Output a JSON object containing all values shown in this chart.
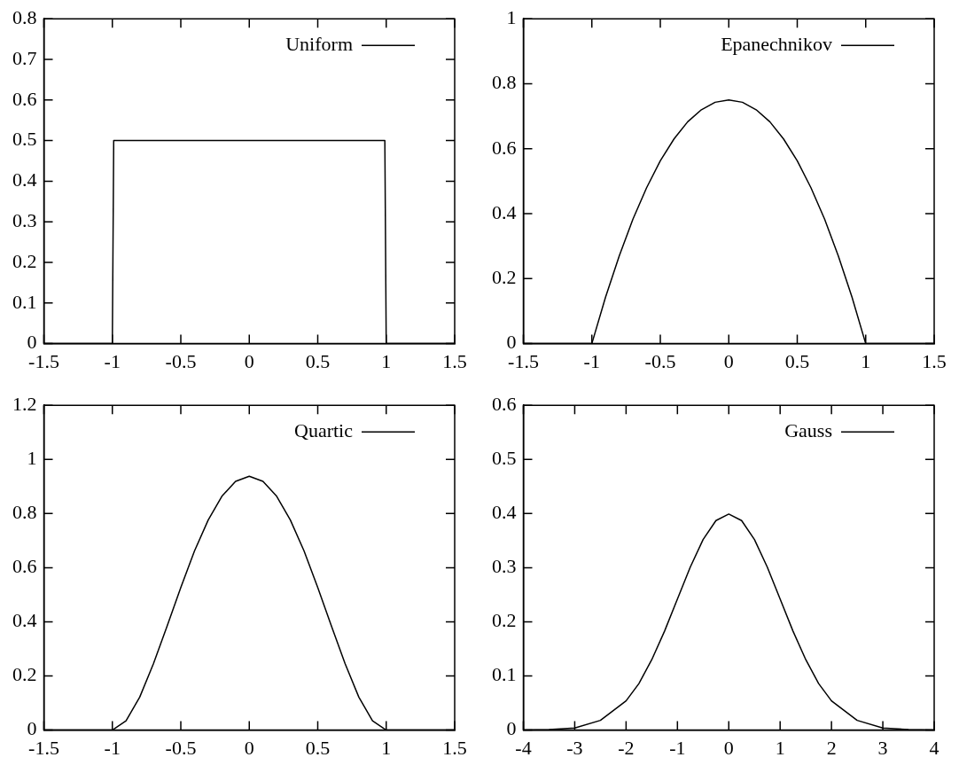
{
  "chart_data": [
    {
      "type": "line",
      "xlim": [
        -1.5,
        1.5
      ],
      "xticks": [
        -1.5,
        -1,
        -0.5,
        0,
        0.5,
        1,
        1.5
      ],
      "ylim": [
        0,
        0.8
      ],
      "yticks": [
        0,
        0.1,
        0.2,
        0.3,
        0.4,
        0.5,
        0.6,
        0.7,
        0.8
      ],
      "legend": "top right",
      "marker": "none",
      "grid": false,
      "series": [
        {
          "name": "Uniform",
          "color": "#000000",
          "x": [
            -1.5,
            -1,
            -0.99,
            0.99,
            1,
            1.5
          ],
          "values": [
            0,
            0,
            0.5,
            0.5,
            0,
            0
          ]
        }
      ]
    },
    {
      "type": "line",
      "xlim": [
        -1.5,
        1.5
      ],
      "xticks": [
        -1.5,
        -1,
        -0.5,
        0,
        0.5,
        1,
        1.5
      ],
      "ylim": [
        0,
        1
      ],
      "yticks": [
        0,
        0.2,
        0.4,
        0.6,
        0.8,
        1
      ],
      "legend": "top right",
      "marker": "none",
      "grid": false,
      "series": [
        {
          "name": "Epanechnikov",
          "color": "#000000",
          "x": [
            -1.5,
            -1,
            -0.9,
            -0.8,
            -0.7,
            -0.6,
            -0.5,
            -0.4,
            -0.3,
            -0.2,
            -0.1,
            0,
            0.1,
            0.2,
            0.3,
            0.4,
            0.5,
            0.6,
            0.7,
            0.8,
            0.9,
            1,
            1.5
          ],
          "values": [
            0,
            0,
            0.143,
            0.27,
            0.383,
            0.48,
            0.563,
            0.63,
            0.683,
            0.72,
            0.743,
            0.75,
            0.743,
            0.72,
            0.683,
            0.63,
            0.563,
            0.48,
            0.383,
            0.27,
            0.143,
            0,
            0
          ]
        }
      ]
    },
    {
      "type": "line",
      "xlim": [
        -1.5,
        1.5
      ],
      "xticks": [
        -1.5,
        -1,
        -0.5,
        0,
        0.5,
        1,
        1.5
      ],
      "ylim": [
        0,
        1.2
      ],
      "yticks": [
        0,
        0.2,
        0.4,
        0.6,
        0.8,
        1,
        1.2
      ],
      "legend": "top right",
      "marker": "none",
      "grid": false,
      "series": [
        {
          "name": "Quartic",
          "color": "#000000",
          "x": [
            -1.5,
            -1,
            -0.9,
            -0.8,
            -0.7,
            -0.6,
            -0.5,
            -0.4,
            -0.3,
            -0.2,
            -0.1,
            0,
            0.1,
            0.2,
            0.3,
            0.4,
            0.5,
            0.6,
            0.7,
            0.8,
            0.9,
            1,
            1.5
          ],
          "values": [
            0,
            0,
            0.034,
            0.122,
            0.245,
            0.384,
            0.527,
            0.662,
            0.776,
            0.864,
            0.919,
            0.938,
            0.919,
            0.864,
            0.776,
            0.662,
            0.527,
            0.384,
            0.245,
            0.122,
            0.034,
            0,
            0
          ]
        }
      ]
    },
    {
      "type": "line",
      "xlim": [
        -4,
        4
      ],
      "xticks": [
        -4,
        -3,
        -2,
        -1,
        0,
        1,
        2,
        3,
        4
      ],
      "ylim": [
        0,
        0.6
      ],
      "yticks": [
        0,
        0.1,
        0.2,
        0.3,
        0.4,
        0.5,
        0.6
      ],
      "legend": "top right",
      "marker": "none",
      "grid": false,
      "series": [
        {
          "name": "Gauss",
          "color": "#000000",
          "x": [
            -4,
            -3.5,
            -3,
            -2.5,
            -2,
            -1.75,
            -1.5,
            -1.25,
            -1,
            -0.75,
            -0.5,
            -0.25,
            0,
            0.25,
            0.5,
            0.75,
            1,
            1.25,
            1.5,
            1.75,
            2,
            2.5,
            3,
            3.5,
            4
          ],
          "values": [
            0,
            0.001,
            0.004,
            0.018,
            0.054,
            0.086,
            0.13,
            0.183,
            0.242,
            0.301,
            0.352,
            0.387,
            0.399,
            0.387,
            0.352,
            0.301,
            0.242,
            0.183,
            0.13,
            0.086,
            0.054,
            0.018,
            0.004,
            0.001,
            0
          ]
        }
      ]
    }
  ]
}
